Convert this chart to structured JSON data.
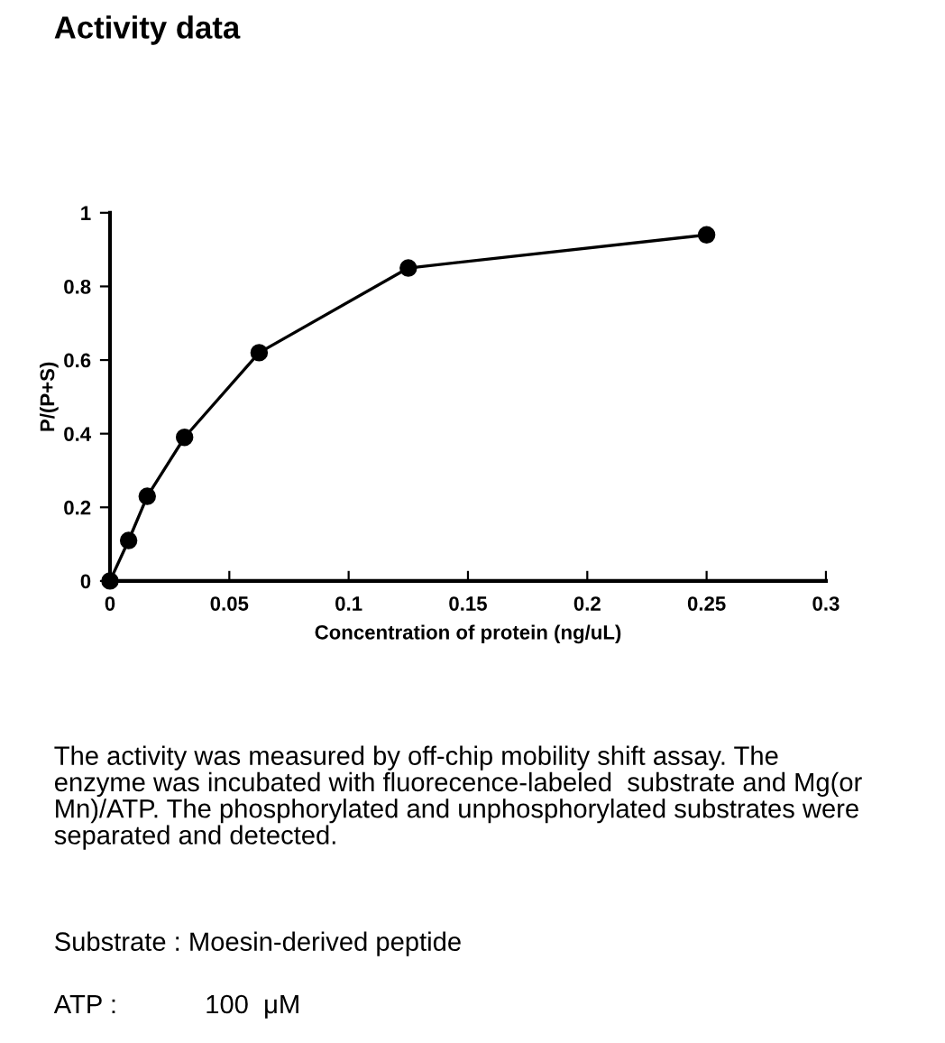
{
  "chart_data": {
    "type": "line",
    "title": "Activity data",
    "xlabel": "Concentration of protein (ng/uL)",
    "ylabel": "P/(P+S)",
    "x": [
      0,
      0.0078,
      0.0156,
      0.03125,
      0.0625,
      0.125,
      0.25
    ],
    "series": [
      {
        "color": "#000000",
        "values": [
          0,
          0.11,
          0.23,
          0.39,
          0.62,
          0.85,
          0.94
        ]
      }
    ],
    "marker": "circle",
    "line_style": "solid",
    "grid": false,
    "legend": false,
    "xlim": [
      0,
      0.3
    ],
    "xticks": [
      0,
      0.05,
      0.1,
      0.15,
      0.2,
      0.25,
      0.3
    ],
    "ylim": [
      0,
      1
    ],
    "yticks": [
      0,
      0.2,
      0.4,
      0.6,
      0.8,
      1
    ],
    "annotations": [
      "The activity was measured by off-chip mobility shift assay. The\nenzyme was incubated with fluorecence-labeled  substrate and Mg(or\nMn)/ATP. The phosphorylated and unphosphorylated substrates were\nseparated and detected.",
      "Substrate : Moesin-derived peptide",
      "ATP :            100  μM"
    ]
  }
}
